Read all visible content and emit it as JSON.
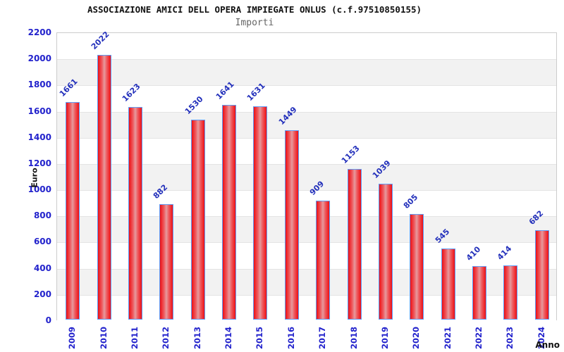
{
  "title": "ASSOCIAZIONE AMICI DELL OPERA IMPIEGATE ONLUS (c.f.97510850155)",
  "subtitle": "Importi",
  "chart_data": {
    "type": "bar",
    "title": "ASSOCIAZIONE AMICI DELL OPERA IMPIEGATE ONLUS (c.f.97510850155)",
    "subtitle": "Importi",
    "categories": [
      "2009",
      "2010",
      "2011",
      "2012",
      "2013",
      "2014",
      "2015",
      "2016",
      "2017",
      "2018",
      "2019",
      "2020",
      "2021",
      "2022",
      "2023",
      "2024"
    ],
    "values": [
      1661,
      2022,
      1623,
      882,
      1530,
      1641,
      1631,
      1449,
      909,
      1153,
      1039,
      805,
      545,
      410,
      414,
      682
    ],
    "xlabel": "Anno",
    "ylabel": "Euro",
    "ylim": [
      0,
      2200
    ],
    "ytick_step": 200,
    "yticks": [
      0,
      200,
      400,
      600,
      800,
      1000,
      1200,
      1400,
      1600,
      1800,
      2000,
      2200
    ],
    "grid": "alternating-horizontal-bands",
    "legend": "none",
    "value_labels": "rotated-45-above-bars"
  },
  "colors": {
    "tick_label": "#2222cc",
    "value_label": "#2330bb",
    "bar_border": "#5f9cf6",
    "bar_edge": "#ed0f14",
    "bar_mid": "#e69a9e",
    "bar_inner": "#ee5e62",
    "band_gray": "#f2f2f2",
    "grid_line": "#e4e4e4",
    "plot_border": "#cccccc",
    "title_color": "#111111",
    "subtitle_color": "#666666"
  }
}
